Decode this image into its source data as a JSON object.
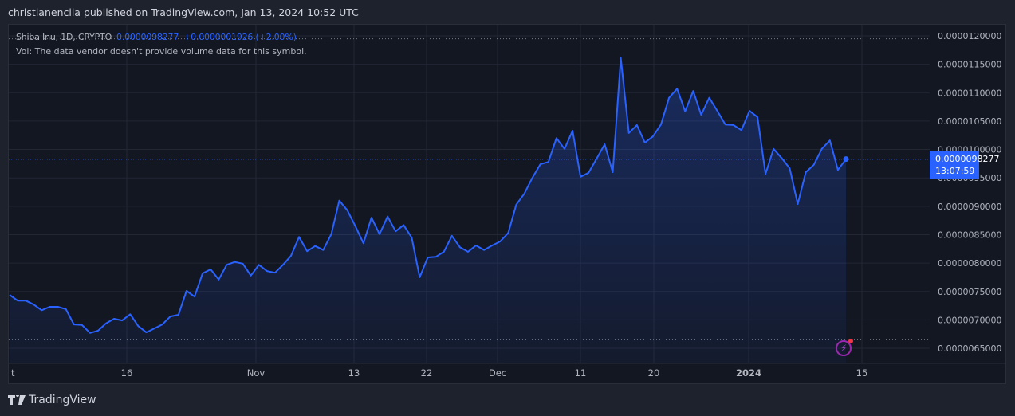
{
  "header": {
    "published": "christianencila published on TradingView.com, Jan 13, 2024 10:52 UTC"
  },
  "legend": {
    "symbol": "Shiba Inu, 1D, CRYPTO",
    "last": "0.0000098277",
    "change": "+0.0000001926 (+2.00%)",
    "volume_note": "Vol: The data vendor doesn't provide volume data for this symbol."
  },
  "price_tag": {
    "price": "0.0000098277",
    "countdown": "13:07:59"
  },
  "footer": {
    "brand": "TradingView"
  },
  "colors": {
    "line": "#2962ff",
    "background": "#131722",
    "tag": "#2962ff"
  },
  "chart_data": {
    "type": "area",
    "title": "Shiba Inu, 1D, CRYPTO",
    "value_unit": "1e-6",
    "x_tick_labels": [
      "t",
      "16",
      "Nov",
      "13",
      "22",
      "Dec",
      "11",
      "20",
      "2024",
      "15"
    ],
    "y_tick_labels": [
      "0.0000120000",
      "0.0000115000",
      "0.0000110000",
      "0.0000105000",
      "0.0000100000",
      "0.0000095000",
      "0.0000090000",
      "0.0000085000",
      "0.0000080000",
      "0.0000075000",
      "0.0000070000",
      "0.0000065000"
    ],
    "ylim": [
      6.5,
      12.0
    ],
    "values": [
      7.44,
      7.34,
      7.34,
      7.27,
      7.17,
      7.23,
      7.23,
      7.19,
      6.92,
      6.91,
      6.77,
      6.81,
      6.94,
      7.02,
      6.99,
      7.1,
      6.89,
      6.78,
      6.85,
      6.92,
      7.06,
      7.09,
      7.51,
      7.41,
      7.82,
      7.89,
      7.71,
      7.97,
      8.02,
      7.99,
      7.78,
      7.97,
      7.86,
      7.83,
      7.97,
      8.13,
      8.46,
      8.21,
      8.3,
      8.23,
      8.51,
      9.1,
      8.93,
      8.65,
      8.35,
      8.8,
      8.51,
      8.82,
      8.56,
      8.67,
      8.45,
      7.75,
      8.1,
      8.11,
      8.2,
      8.48,
      8.28,
      8.2,
      8.31,
      8.23,
      8.31,
      8.38,
      8.53,
      9.03,
      9.22,
      9.5,
      9.74,
      9.78,
      10.2,
      10.01,
      10.33,
      9.52,
      9.59,
      9.84,
      10.09,
      9.6,
      11.61,
      10.29,
      10.43,
      10.12,
      10.23,
      10.44,
      10.91,
      11.07,
      10.67,
      11.03,
      10.61,
      10.91,
      10.68,
      10.44,
      10.43,
      10.34,
      10.68,
      10.57,
      9.57,
      10.01,
      9.85,
      9.67,
      9.04,
      9.6,
      9.73,
      10.01,
      10.16,
      9.64,
      9.83
    ],
    "last_value": 9.8277,
    "high_line": 11.95,
    "low_line": 6.65,
    "grid": true
  }
}
